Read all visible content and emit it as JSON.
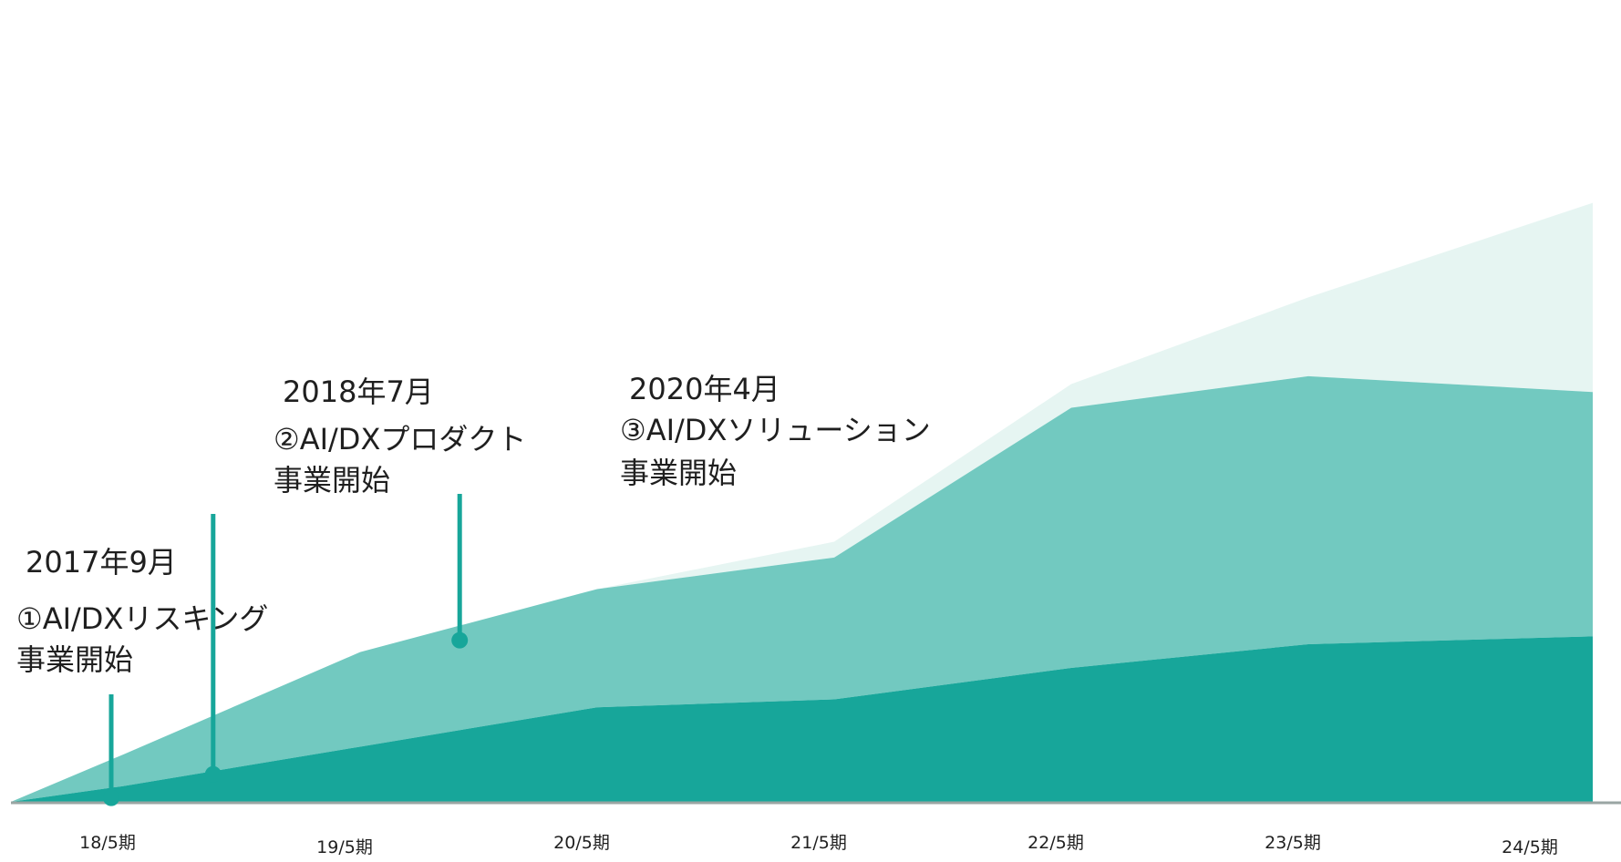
{
  "chart_data": {
    "type": "area",
    "stacked": true,
    "categories": [
      "18/5期",
      "19/5期",
      "20/5期",
      "21/5期",
      "22/5期",
      "23/5期",
      "24/5期"
    ],
    "x": [
      -0.5,
      0,
      1,
      2,
      3,
      4,
      5,
      6.2
    ],
    "series": [
      {
        "color": "#17a69a",
        "values": [
          0,
          2,
          7,
          12,
          13,
          17,
          20,
          21
        ]
      },
      {
        "color": "#72c9c0",
        "values": [
          0,
          4,
          12,
          15,
          18,
          33,
          34,
          31
        ]
      },
      {
        "color": "#e6f5f2",
        "values": [
          0,
          0,
          0,
          0,
          2,
          3,
          10,
          24
        ]
      }
    ],
    "ylim": [
      0,
      100
    ],
    "grid": false,
    "legend": "none",
    "annotations": [
      {
        "id": "ann1",
        "date": "2017年9月",
        "lines": [
          "①AI/DXリスキング",
          "事業開始"
        ],
        "x": -0.05,
        "y": 0.5
      },
      {
        "id": "ann2",
        "date": "2018年7月",
        "lines": [
          "②AI/DXプロダクト",
          "事業開始"
        ],
        "x": 0.38,
        "y": 3.5
      },
      {
        "id": "ann3",
        "date": "2020年4月",
        "lines": [
          "③AI/DXソリューション",
          "事業開始"
        ],
        "x": 1.42,
        "y": 20.5
      }
    ],
    "colors": {
      "marker": "#17a69a",
      "baseline": "#9aa5a3",
      "text": "#1f1f1f"
    }
  }
}
